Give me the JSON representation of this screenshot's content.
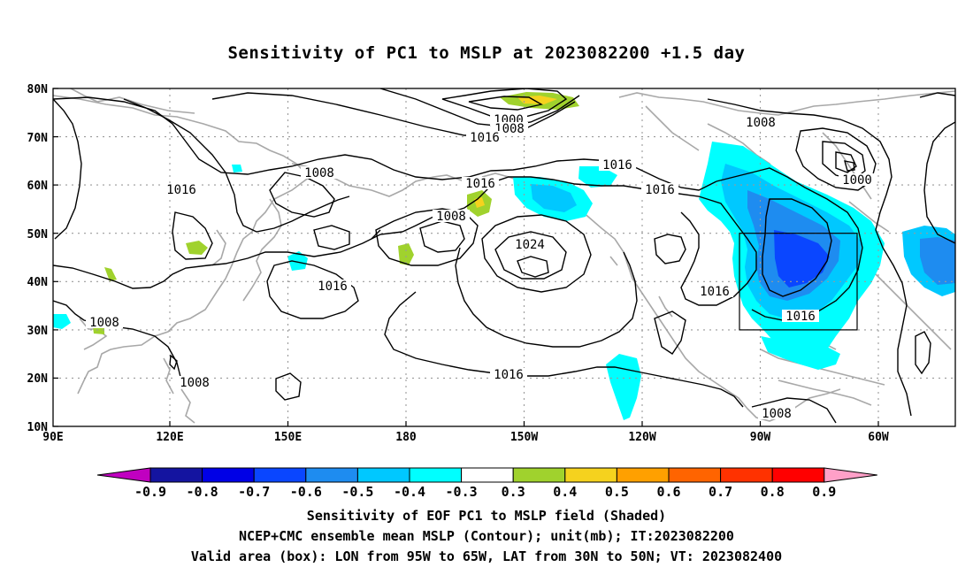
{
  "title": "Sensitivity of PC1 to MSLP at 2023082200 +1.5 day",
  "map": {
    "lat_ticks": [
      "80N",
      "70N",
      "60N",
      "50N",
      "40N",
      "30N",
      "20N",
      "10N"
    ],
    "lon_ticks": [
      "90E",
      "120E",
      "150E",
      "180",
      "150W",
      "120W",
      "90W",
      "60W"
    ],
    "contour_labels": [
      "1000",
      "1008",
      "1016",
      "1016",
      "1008",
      "1016",
      "1016",
      "1016",
      "1016",
      "1008",
      "1024",
      "1016",
      "1016",
      "1008",
      "1016",
      "1008",
      "1008",
      "1000",
      "1016",
      "1016",
      "1008"
    ],
    "valid_box": {
      "lon_from": "95W",
      "lon_to": "65W",
      "lat_from": "30N",
      "lat_to": "50N"
    }
  },
  "colorbar": {
    "labels": [
      "-0.9",
      "-0.8",
      "-0.7",
      "-0.6",
      "-0.5",
      "-0.4",
      "-0.3",
      "0.3",
      "0.4",
      "0.5",
      "0.6",
      "0.7",
      "0.8",
      "0.9"
    ],
    "colors": [
      "#c000c0",
      "#1414a0",
      "#0000e6",
      "#0a46ff",
      "#1e8cf0",
      "#00c8ff",
      "#00ffff",
      "#ffffff",
      "#a0d22d",
      "#f5d21e",
      "#ffa000",
      "#ff6400",
      "#ff3200",
      "#ff0000",
      "#ffa0c8"
    ]
  },
  "captions": {
    "line1": "Sensitivity of EOF PC1 to MSLP field (Shaded)",
    "line2": "NCEP+CMC ensemble mean MSLP (Contour); unit(mb); IT:2023082200",
    "line3": "Valid area (box): LON from 95W to 65W, LAT from 30N to 50N; VT: 2023082400"
  }
}
